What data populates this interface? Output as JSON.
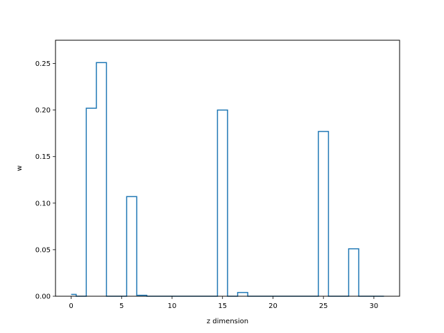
{
  "chart_data": {
    "type": "line",
    "drawstyle": "steps-mid",
    "xlabel": "z dimension",
    "ylabel": "w",
    "xlim": [
      -1.55,
      32.55
    ],
    "ylim": [
      0.0,
      0.275
    ],
    "xticks": [
      0,
      5,
      10,
      15,
      20,
      25,
      30
    ],
    "yticks": [
      0.0,
      0.05,
      0.1,
      0.15,
      0.2,
      0.25
    ],
    "xtick_labels": [
      "0",
      "5",
      "10",
      "15",
      "20",
      "25",
      "30"
    ],
    "ytick_labels": [
      "0.00",
      "0.05",
      "0.10",
      "0.15",
      "0.20",
      "0.25"
    ],
    "line_color": "#1f77b4",
    "grid": false,
    "series": [
      {
        "x": [
          0,
          1,
          2,
          3,
          4,
          5,
          6,
          7,
          8,
          9,
          10,
          11,
          12,
          13,
          14,
          15,
          16,
          17,
          18,
          19,
          20,
          21,
          22,
          23,
          24,
          25,
          26,
          27,
          28,
          29,
          30,
          31
        ],
        "y": [
          0.002,
          0.0,
          0.202,
          0.251,
          0.0,
          0.0,
          0.107,
          0.001,
          0.0,
          0.0,
          0.0,
          0.0,
          0.0,
          0.0,
          0.0,
          0.2,
          0.0,
          0.004,
          0.0,
          0.0,
          0.0,
          0.0,
          0.0,
          0.0,
          0.0,
          0.177,
          0.0,
          0.0,
          0.051,
          0.0,
          0.0,
          0.0
        ]
      }
    ]
  }
}
